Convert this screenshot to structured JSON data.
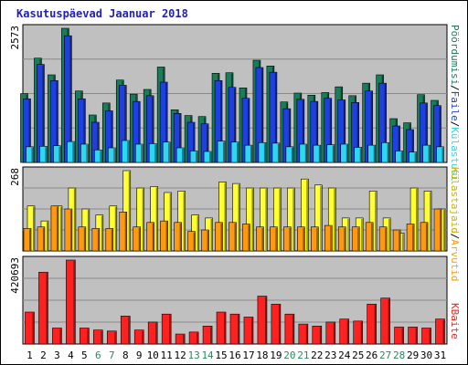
{
  "chart_data": {
    "type": "bar",
    "title": "Kasutuspäevad Jaanuar 2018",
    "categories": [
      "1",
      "2",
      "3",
      "4",
      "5",
      "6",
      "7",
      "8",
      "9",
      "10",
      "11",
      "12",
      "13",
      "14",
      "15",
      "16",
      "17",
      "18",
      "19",
      "20",
      "21",
      "22",
      "23",
      "24",
      "25",
      "26",
      "27",
      "28",
      "29",
      "30",
      "31"
    ],
    "weekend_categories": [
      "6",
      "7",
      "13",
      "14",
      "20",
      "21",
      "27",
      "28"
    ],
    "panels": [
      {
        "id": "top",
        "y_max_label": "2573",
        "y_max": 2573,
        "series": [
          {
            "name": "Pöördumisi",
            "color": "#1a7d5a",
            "values": [
              1320,
              2000,
              1680,
              2573,
              1370,
              910,
              1140,
              1580,
              1310,
              1400,
              1830,
              1010,
              900,
              880,
              1710,
              1720,
              1430,
              1960,
              1850,
              1160,
              1330,
              1290,
              1340,
              1450,
              1280,
              1520,
              1680,
              840,
              760,
              1300,
              1190
            ]
          },
          {
            "name": "Faile",
            "color": "#1f40e0",
            "values": [
              1220,
              1880,
              1570,
              2430,
              1220,
              770,
              990,
              1480,
              1170,
              1280,
              1540,
              940,
              770,
              740,
              1570,
              1440,
              1230,
              1820,
              1730,
              1030,
              1210,
              1170,
              1230,
              1200,
              1150,
              1370,
              1520,
              700,
              630,
              1140,
              1090
            ]
          },
          {
            "name": "Külastusi",
            "color": "#2fd6f2",
            "values": [
              300,
              310,
              320,
              400,
              350,
              240,
              280,
              420,
              350,
              360,
              390,
              280,
              220,
              210,
              410,
              390,
              330,
              380,
              370,
              300,
              350,
              330,
              340,
              350,
              290,
              330,
              380,
              220,
              200,
              330,
              300
            ]
          }
        ]
      },
      {
        "id": "middle",
        "y_max_label": "268",
        "y_max": 268,
        "series": [
          {
            "name": "Külastajaid",
            "color": "#ffff33",
            "values": [
              150,
              100,
              150,
              210,
              140,
              120,
              150,
              268,
              210,
              215,
              195,
              200,
              120,
              110,
              230,
              225,
              210,
              210,
              210,
              210,
              240,
              220,
              210,
              110,
              110,
              200,
              110,
              60,
              210,
              200,
              140
            ]
          },
          {
            "name": "Arvutid",
            "color": "#ff9a10",
            "values": [
              75,
              80,
              150,
              140,
              80,
              75,
              75,
              130,
              80,
              95,
              100,
              95,
              65,
              70,
              95,
              95,
              90,
              80,
              80,
              80,
              80,
              80,
              85,
              80,
              80,
              95,
              80,
              70,
              90,
              95,
              140
            ]
          }
        ]
      },
      {
        "id": "bottom",
        "y_max_label": "420693",
        "y_max": 420693,
        "series": [
          {
            "name": "KBaite",
            "color": "#ff2020",
            "values": [
              160000,
              360000,
              80000,
              420693,
              80000,
              70000,
              65000,
              140000,
              70000,
              110000,
              150000,
              50000,
              60000,
              90000,
              160000,
              150000,
              135000,
              240000,
              200000,
              150000,
              100000,
              90000,
              110000,
              125000,
              115000,
              200000,
              230000,
              85000,
              85000,
              80000,
              125000
            ]
          }
        ]
      }
    ],
    "grid": true,
    "legend": "right-vertical"
  }
}
